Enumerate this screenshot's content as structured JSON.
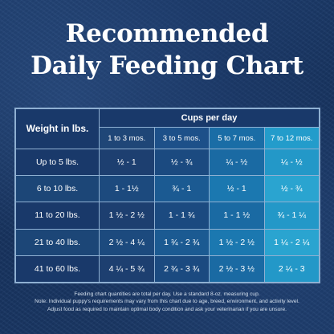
{
  "title": {
    "line1": "Recommended",
    "line2": "Daily Feeding Chart"
  },
  "table": {
    "weight_header": "Weight in lbs.",
    "cups_header": "Cups per day",
    "age_columns": [
      "1 to 3 mos.",
      "3 to 5 mos.",
      "5 to 7 mos.",
      "7 to 12 mos."
    ],
    "rows": [
      {
        "weight": "Up to 5 lbs.",
        "values": [
          "½ - 1",
          "½ - ¾",
          "¼ - ½",
          "¼ - ½"
        ]
      },
      {
        "weight": "6 to 10 lbs.",
        "values": [
          "1 - 1½",
          "¾ - 1",
          "½ - 1",
          "½ - ¾"
        ]
      },
      {
        "weight": "11 to 20 lbs.",
        "values": [
          "1 ½ - 2 ½",
          "1 - 1 ¾",
          "1 - 1 ½",
          "¾ - 1 ¼"
        ]
      },
      {
        "weight": "21 to 40 lbs.",
        "values": [
          "2 ½ - 4 ¼",
          "1 ¾ - 2 ¾",
          "1 ½ - 2 ½",
          "1 ¼ - 2 ¼"
        ]
      },
      {
        "weight": "41 to 60 lbs.",
        "values": [
          "4 ¼ - 5 ¾",
          "2 ¾ - 3 ¾",
          "2 ½ - 3 ½",
          "2 ¼ - 3"
        ]
      }
    ]
  },
  "notes": {
    "line1": "Feeding chart quantities are total per day. Use a standard 8-oz. measuring cup.",
    "line2": "Note: Individual puppy's requirements may vary from this chart due to age, breed, environment, and activity level.",
    "line3": "Adjust food as required to maintain optimal body condition and ask your veterinarian if you are unsure."
  },
  "colors": {
    "background": "#1a3766",
    "border": "#8fb0d2",
    "col_1_to_3": "#1d3f70",
    "col_3_to_5": "#1b4a80",
    "col_5_to_7": "#1a6aa3",
    "col_7_to_12": "#2398c8"
  }
}
